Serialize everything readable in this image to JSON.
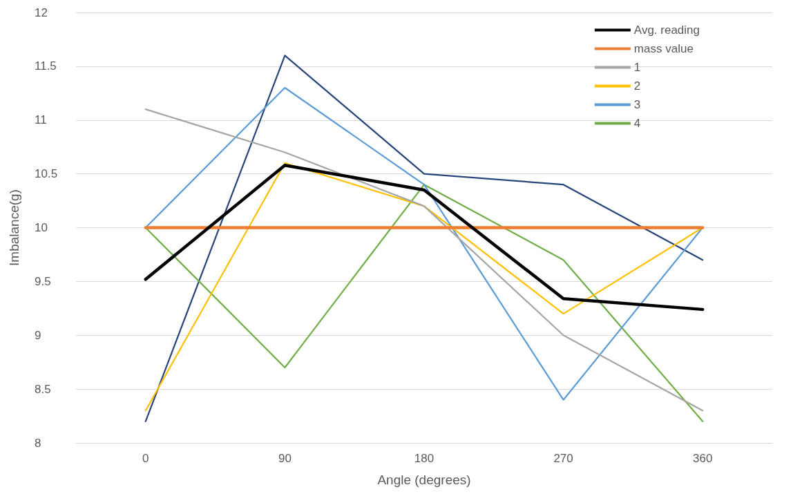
{
  "chart_data": {
    "type": "line",
    "xlabel": "Angle (degrees)",
    "ylabel": "Imbalance(g)",
    "categories": [
      "0",
      "90",
      "180",
      "270",
      "360"
    ],
    "ylim": [
      8,
      12
    ],
    "yticks": [
      8,
      8.5,
      9,
      9.5,
      10,
      10.5,
      11,
      11.5,
      12
    ],
    "grid": "y",
    "legend": "top right",
    "marker": "none",
    "line_style": "solid",
    "series": [
      {
        "name": "Avg. reading",
        "color": "#000000",
        "values": [
          9.52,
          10.58,
          10.35,
          9.34,
          9.24
        ]
      },
      {
        "name": "mass value",
        "color": "#ed7d31",
        "values": [
          10,
          10,
          10,
          10,
          10
        ]
      },
      {
        "name": "1",
        "color": "#a5a5a5",
        "values": [
          11.1,
          10.7,
          10.2,
          9.0,
          8.3
        ]
      },
      {
        "name": "2",
        "color": "#ffc000",
        "values": [
          8.3,
          10.6,
          10.2,
          9.2,
          10
        ]
      },
      {
        "name": "3",
        "color": "#5b9bd5",
        "values": [
          10,
          11.3,
          10.4,
          8.4,
          10
        ]
      },
      {
        "name": "4",
        "color": "#70ad47",
        "values": [
          10,
          8.7,
          10.4,
          9.7,
          8.2
        ]
      },
      {
        "color": "#264478",
        "values": [
          8.2,
          11.6,
          10.5,
          10.4,
          9.7
        ]
      }
    ]
  }
}
